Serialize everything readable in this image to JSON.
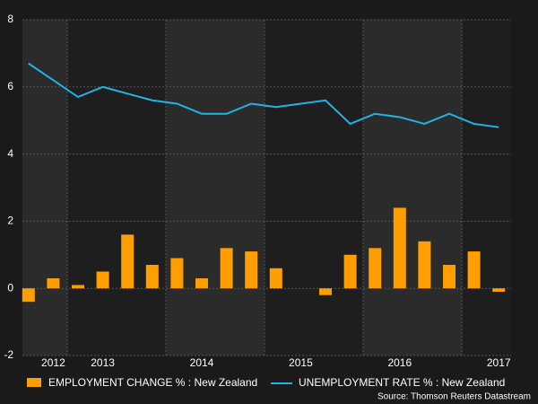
{
  "chart_data": {
    "type": "bar_line",
    "categories": [
      null,
      "2012",
      null,
      "2013",
      null,
      null,
      null,
      "2014",
      null,
      null,
      null,
      "2015",
      null,
      null,
      null,
      "2016",
      null,
      null,
      null,
      "2017"
    ],
    "series": [
      {
        "name": "EMPLOYMENT CHANGE % : New Zealand",
        "type": "bar",
        "color": "#ff9e00",
        "values": [
          -0.4,
          0.3,
          0.1,
          0.5,
          1.6,
          0.7,
          0.9,
          0.3,
          1.2,
          1.1,
          0.6,
          0,
          -0.2,
          1.0,
          1.2,
          2.4,
          1.4,
          0.7,
          1.1,
          -0.1
        ]
      },
      {
        "name": "UNEMPLOYMENT RATE % : New Zealand",
        "type": "line",
        "color": "#1eb4e6",
        "values": [
          6.7,
          6.2,
          5.7,
          6.0,
          5.8,
          5.6,
          5.5,
          5.2,
          5.2,
          5.5,
          5.4,
          5.5,
          5.6,
          4.9,
          5.2,
          5.1,
          4.9,
          5.2,
          4.9,
          4.8
        ]
      }
    ],
    "ylim": [
      -2,
      8
    ],
    "yticks": [
      -2,
      0,
      2,
      4,
      6,
      8
    ],
    "grid": true,
    "source": "Source: Thomson Reuters Datastream"
  }
}
